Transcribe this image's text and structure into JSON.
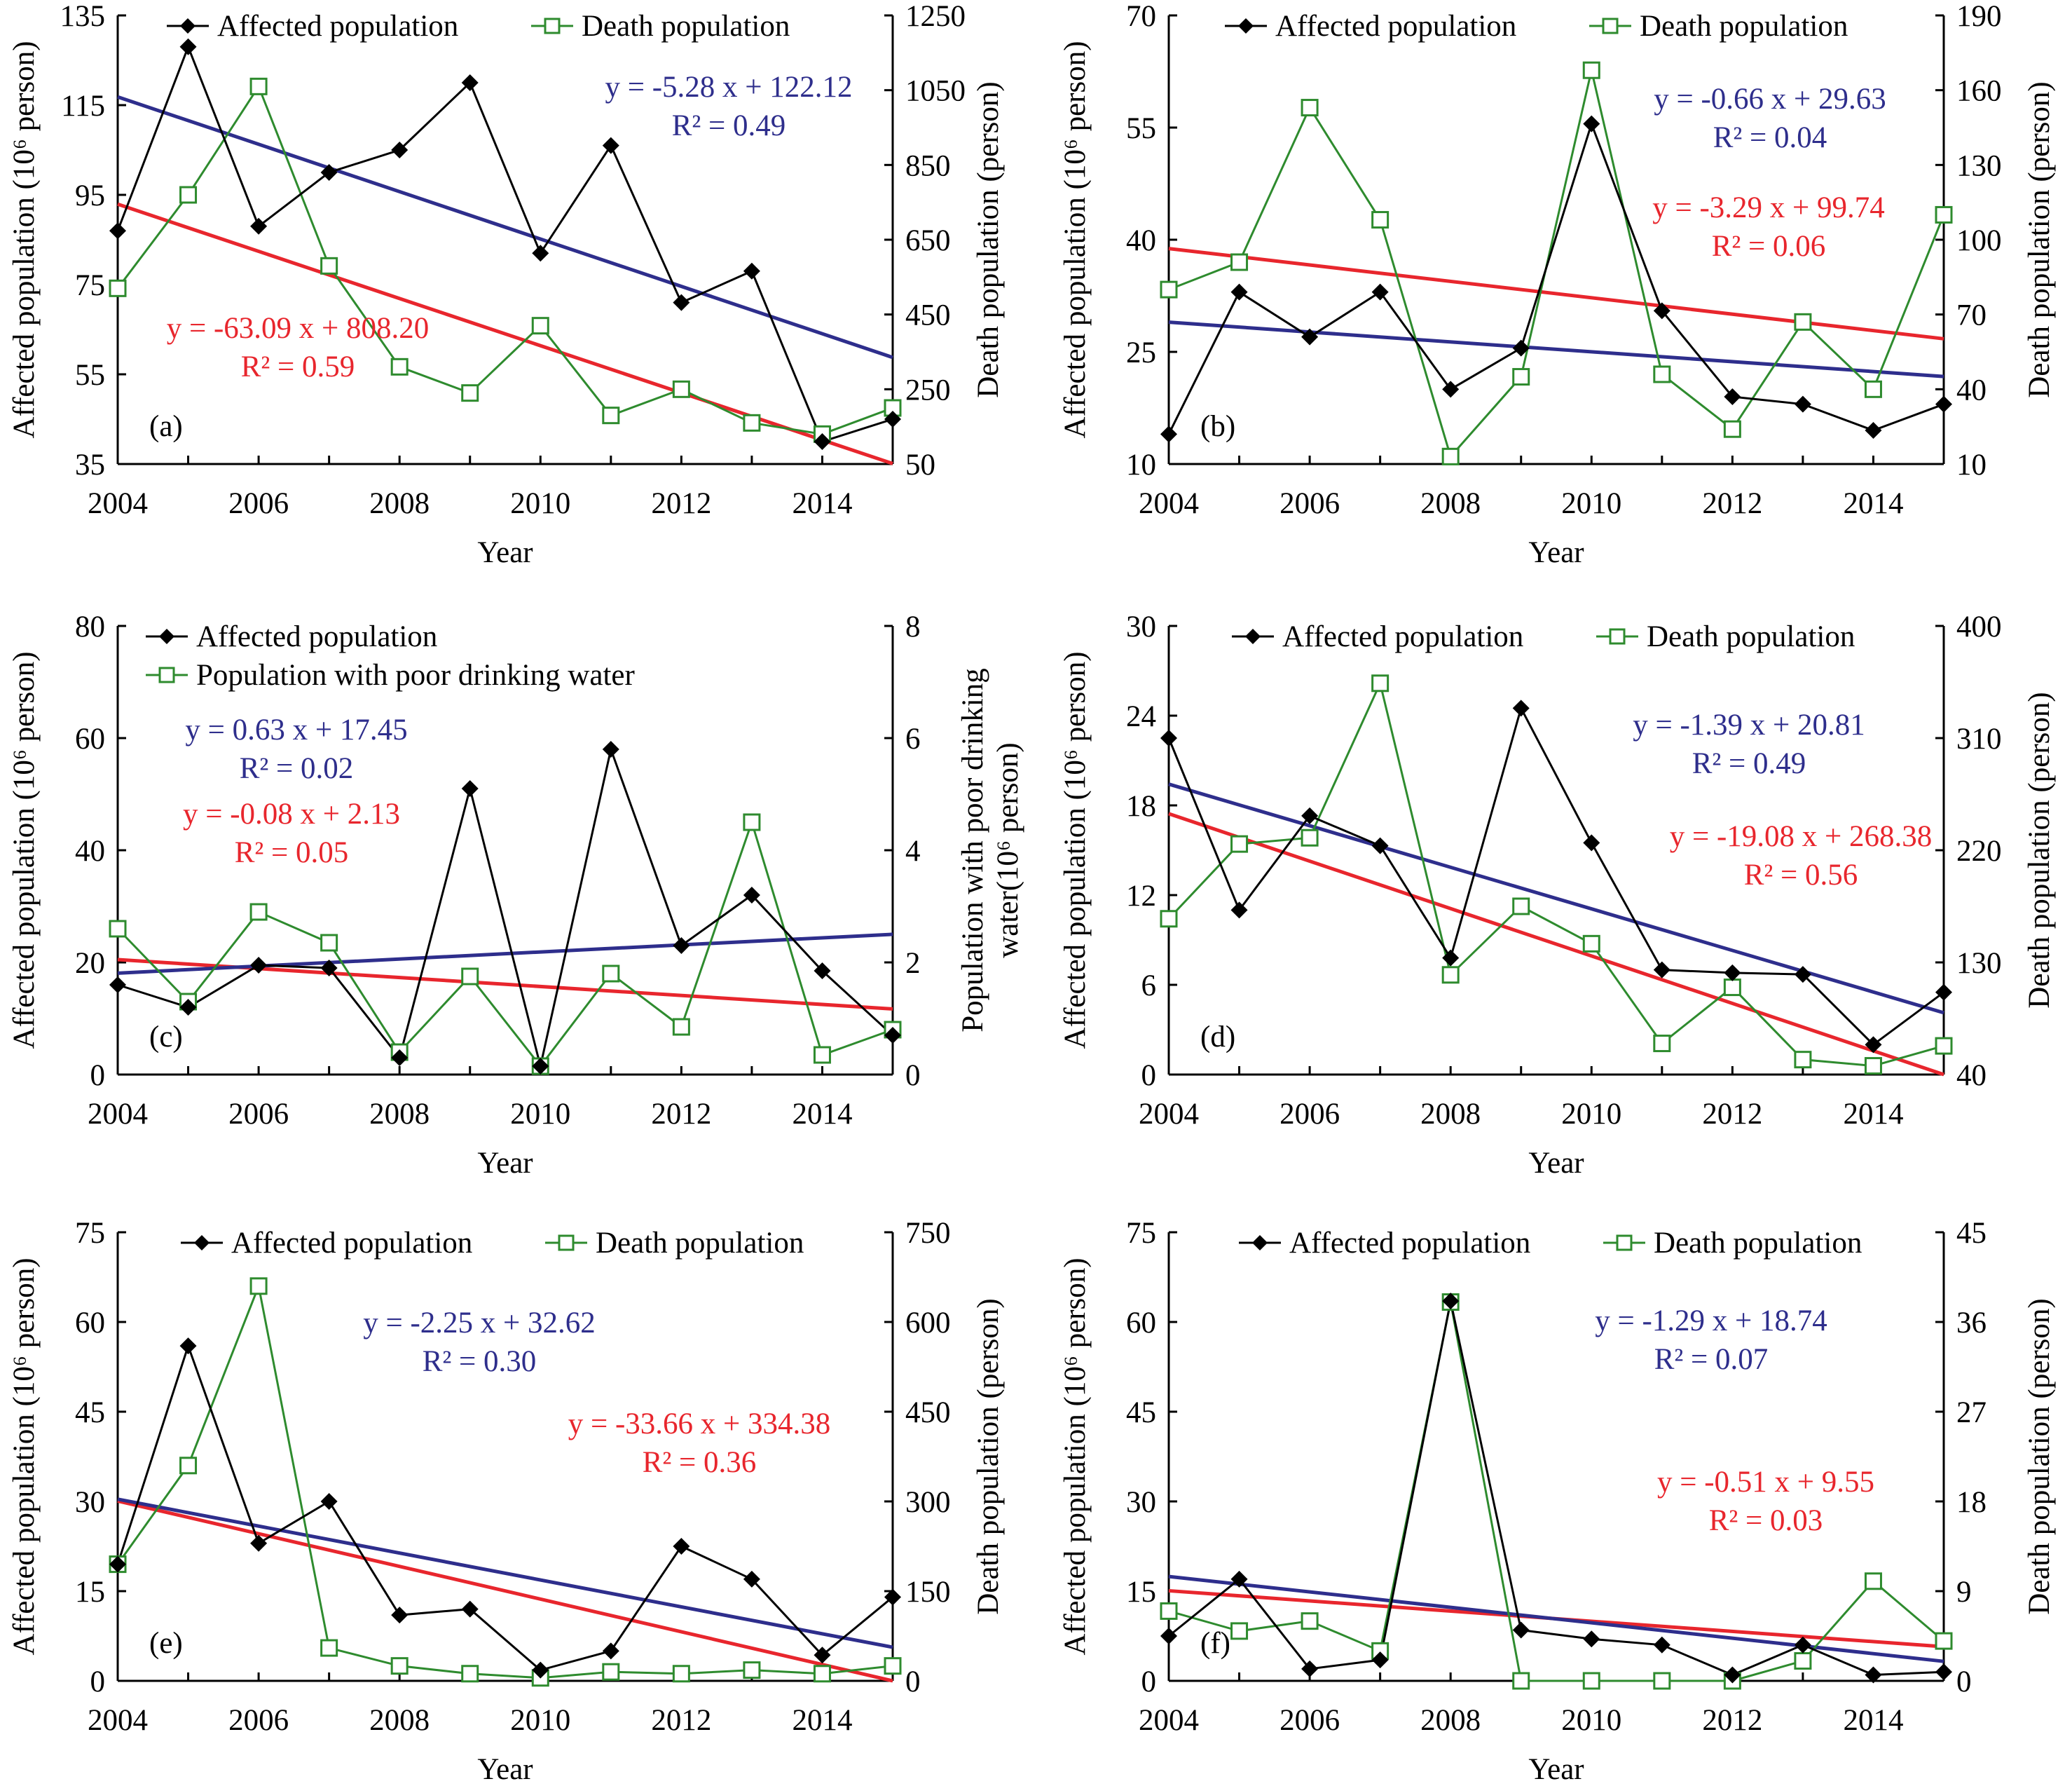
{
  "colors": {
    "affected": "#000000",
    "secondary": "#2e8b2e",
    "trend_affected": "#2e2e8c",
    "trend_secondary": "#e8262d",
    "axis": "#000000"
  },
  "chart_data": [
    {
      "panel": "(a)",
      "type": "line",
      "xlabel": "Year",
      "ylabel_left": "Affected population (10⁶ person)",
      "ylabel_right": "Death population (person)",
      "ylim_left": [
        35,
        135
      ],
      "yticks_left": [
        35,
        55,
        75,
        95,
        115,
        135
      ],
      "ylim_right": [
        50,
        1250
      ],
      "yticks_right": [
        50,
        250,
        450,
        650,
        850,
        1050,
        1250
      ],
      "xticks": [
        2004,
        2006,
        2008,
        2010,
        2012,
        2014
      ],
      "legend": {
        "placement": "top",
        "rows": [
          [
            "Affected population",
            "Death population"
          ]
        ]
      },
      "x": [
        2004,
        2005,
        2006,
        2007,
        2008,
        2009,
        2010,
        2011,
        2012,
        2013,
        2014,
        2015
      ],
      "series": [
        {
          "name": "Affected population",
          "axis": "left",
          "values": [
            87,
            128,
            88,
            100,
            105,
            120,
            82,
            106,
            71,
            78,
            40,
            45
          ]
        },
        {
          "name": "Death population",
          "axis": "right",
          "values": [
            520,
            770,
            1060,
            580,
            310,
            240,
            420,
            180,
            250,
            160,
            130,
            200
          ]
        }
      ],
      "trendlines": [
        {
          "axis": "left",
          "equation": "y = -5.28 x + 122.12",
          "r2": "R² = 0.49",
          "start": 116.84,
          "end": 58.76
        },
        {
          "axis": "right",
          "equation": "y = -63.09 x + 808.20",
          "r2": "R² = 0.59",
          "start": 745.11,
          "end": 51.12
        }
      ],
      "panel_label_pos": "bottom-left"
    },
    {
      "panel": "(b)",
      "type": "line",
      "xlabel": "Year",
      "ylabel_left": "Affected population (10⁶ person)",
      "ylabel_right": "Death population (person)",
      "ylim_left": [
        10,
        70
      ],
      "yticks_left": [
        10,
        25,
        40,
        55,
        70
      ],
      "ylim_right": [
        10,
        190
      ],
      "yticks_right": [
        10,
        40,
        70,
        100,
        130,
        160,
        190
      ],
      "xticks": [
        2004,
        2006,
        2008,
        2010,
        2012,
        2014
      ],
      "legend": {
        "placement": "top",
        "rows": [
          [
            "Affected population",
            "Death population"
          ]
        ]
      },
      "x": [
        2004,
        2005,
        2006,
        2007,
        2008,
        2009,
        2010,
        2011,
        2012,
        2013,
        2014,
        2015
      ],
      "series": [
        {
          "name": "Affected population",
          "axis": "left",
          "values": [
            14,
            33,
            27,
            33,
            20,
            25.5,
            55.5,
            30.5,
            19,
            18,
            14.5,
            18
          ]
        },
        {
          "name": "Death population",
          "axis": "right",
          "values": [
            80,
            91,
            153,
            108,
            13,
            45,
            168,
            46,
            24,
            67,
            40,
            110
          ]
        }
      ],
      "trendlines": [
        {
          "axis": "left",
          "equation": "y = -0.66 x + 29.63",
          "r2": "R² = 0.04",
          "start": 28.97,
          "end": 21.71
        },
        {
          "axis": "right",
          "equation": "y = -3.29 x + 99.74",
          "r2": "R² = 0.06",
          "start": 96.45,
          "end": 60.26
        }
      ],
      "panel_label_pos": "bottom-left"
    },
    {
      "panel": "(c)",
      "type": "line",
      "xlabel": "Year",
      "ylabel_left": "Affected population (10⁶ person)",
      "ylabel_right_lines": [
        "Population with poor drinking",
        "water(10⁶ person)"
      ],
      "ylim_left": [
        0,
        80
      ],
      "yticks_left": [
        0,
        20,
        40,
        60,
        80
      ],
      "ylim_right": [
        0,
        8
      ],
      "yticks_right": [
        0,
        2,
        4,
        6,
        8
      ],
      "xticks": [
        2004,
        2006,
        2008,
        2010,
        2012,
        2014
      ],
      "legend": {
        "placement": "top-left",
        "rows": [
          [
            "Affected population"
          ],
          [
            "Population with poor drinking water"
          ]
        ]
      },
      "x": [
        2004,
        2005,
        2006,
        2007,
        2008,
        2009,
        2010,
        2011,
        2012,
        2013,
        2014,
        2015
      ],
      "series": [
        {
          "name": "Affected population",
          "axis": "left",
          "values": [
            16,
            12,
            19.5,
            19,
            3,
            51,
            1.5,
            58,
            23,
            32,
            18.5,
            7
          ]
        },
        {
          "name": "Population with poor drinking water",
          "axis": "right",
          "values": [
            2.6,
            1.3,
            2.9,
            2.35,
            0.4,
            1.75,
            0.15,
            1.8,
            0.85,
            4.5,
            0.35,
            0.8
          ]
        }
      ],
      "trendlines": [
        {
          "axis": "left",
          "equation": "y = 0.63 x + 17.45",
          "r2": "R² = 0.02",
          "start": 18.08,
          "end": 25.01
        },
        {
          "axis": "right",
          "equation": "y = -0.08 x + 2.13",
          "r2": "R² = 0.05",
          "start": 2.05,
          "end": 1.17
        }
      ],
      "panel_label_pos": "bottom-left"
    },
    {
      "panel": "(d)",
      "type": "line",
      "xlabel": "Year",
      "ylabel_left": "Affected population (10⁶ person)",
      "ylabel_right": "Death population (person)",
      "ylim_left": [
        0,
        30
      ],
      "yticks_left": [
        0,
        6,
        12,
        18,
        24,
        30
      ],
      "ylim_right": [
        40,
        400
      ],
      "yticks_right": [
        40,
        130,
        220,
        310,
        400
      ],
      "xticks": [
        2004,
        2006,
        2008,
        2010,
        2012,
        2014
      ],
      "legend": {
        "placement": "top",
        "rows": [
          [
            "Affected population",
            "Death population"
          ]
        ]
      },
      "x": [
        2004,
        2005,
        2006,
        2007,
        2008,
        2009,
        2010,
        2011,
        2012,
        2013,
        2014,
        2015
      ],
      "series": [
        {
          "name": "Affected population",
          "axis": "left",
          "values": [
            22.5,
            11,
            17.3,
            15.3,
            7.8,
            24.5,
            15.5,
            7,
            6.8,
            6.7,
            2,
            5.5
          ]
        },
        {
          "name": "Death population",
          "axis": "right",
          "values": [
            165,
            225,
            230,
            354,
            120,
            175,
            145,
            65,
            110,
            52,
            47,
            63
          ]
        }
      ],
      "trendlines": [
        {
          "axis": "left",
          "equation": "y = -1.39 x + 20.81",
          "r2": "R² = 0.49",
          "start": 19.42,
          "end": 4.13
        },
        {
          "axis": "right",
          "equation": "y = -19.08 x + 268.38",
          "r2": "R² = 0.56",
          "start": 249.3,
          "end": 40
        }
      ],
      "panel_label_pos": "bottom-left"
    },
    {
      "panel": "(e)",
      "type": "line",
      "xlabel": "Year",
      "ylabel_left": "Affected population (10⁶ person)",
      "ylabel_right": "Death population (person)",
      "ylim_left": [
        0,
        75
      ],
      "yticks_left": [
        0,
        15,
        30,
        45,
        60,
        75
      ],
      "ylim_right": [
        0,
        750
      ],
      "yticks_right": [
        0,
        150,
        300,
        450,
        600,
        750
      ],
      "xticks": [
        2004,
        2006,
        2008,
        2010,
        2012,
        2014
      ],
      "legend": {
        "placement": "top",
        "rows": [
          [
            "Affected population",
            "Death population"
          ]
        ]
      },
      "x": [
        2004,
        2005,
        2006,
        2007,
        2008,
        2009,
        2010,
        2011,
        2012,
        2013,
        2014,
        2015
      ],
      "series": [
        {
          "name": "Affected population",
          "axis": "left",
          "values": [
            19.5,
            56,
            23,
            30,
            11,
            12,
            1.8,
            5,
            22.5,
            17,
            4.3,
            14
          ]
        },
        {
          "name": "Death population",
          "axis": "right",
          "values": [
            195,
            360,
            660,
            55,
            25,
            12,
            5,
            15,
            12,
            18,
            12,
            25
          ]
        }
      ],
      "trendlines": [
        {
          "axis": "left",
          "equation": "y = -2.25 x + 32.62",
          "r2": "R² = 0.30",
          "start": 30.37,
          "end": 5.62
        },
        {
          "axis": "right",
          "equation": "y = -33.66 x + 334.38",
          "r2": "R² = 0.36",
          "start": 300.72,
          "end": 0
        }
      ],
      "panel_label_pos": "bottom-left"
    },
    {
      "panel": "(f)",
      "type": "line",
      "xlabel": "Year",
      "ylabel_left": "Affected population (10⁶ person)",
      "ylabel_right": "Death population (person)",
      "ylim_left": [
        0,
        75
      ],
      "yticks_left": [
        0,
        15,
        30,
        45,
        60,
        75
      ],
      "ylim_right": [
        0,
        45
      ],
      "yticks_right": [
        0,
        9,
        18,
        27,
        36,
        45
      ],
      "xticks": [
        2004,
        2006,
        2008,
        2010,
        2012,
        2014
      ],
      "legend": {
        "placement": "top",
        "rows": [
          [
            "Affected population",
            "Death population"
          ]
        ]
      },
      "x": [
        2004,
        2005,
        2006,
        2007,
        2008,
        2009,
        2010,
        2011,
        2012,
        2013,
        2014,
        2015
      ],
      "series": [
        {
          "name": "Affected population",
          "axis": "left",
          "values": [
            7.5,
            17,
            2,
            3.5,
            63.5,
            8.5,
            7,
            6,
            1,
            6,
            1,
            1.5
          ]
        },
        {
          "name": "Death population",
          "axis": "right",
          "values": [
            7,
            5,
            6,
            3,
            38,
            0,
            0,
            0,
            0,
            2,
            10,
            4
          ]
        }
      ],
      "trendlines": [
        {
          "axis": "left",
          "equation": "y = -1.29 x + 18.74",
          "r2": "R² = 0.07",
          "start": 17.45,
          "end": 3.26
        },
        {
          "axis": "right",
          "equation": "y = -0.51 x + 9.55",
          "r2": "R² = 0.03",
          "start": 9.04,
          "end": 3.43
        }
      ],
      "panel_label_pos": "bottom-left"
    }
  ]
}
